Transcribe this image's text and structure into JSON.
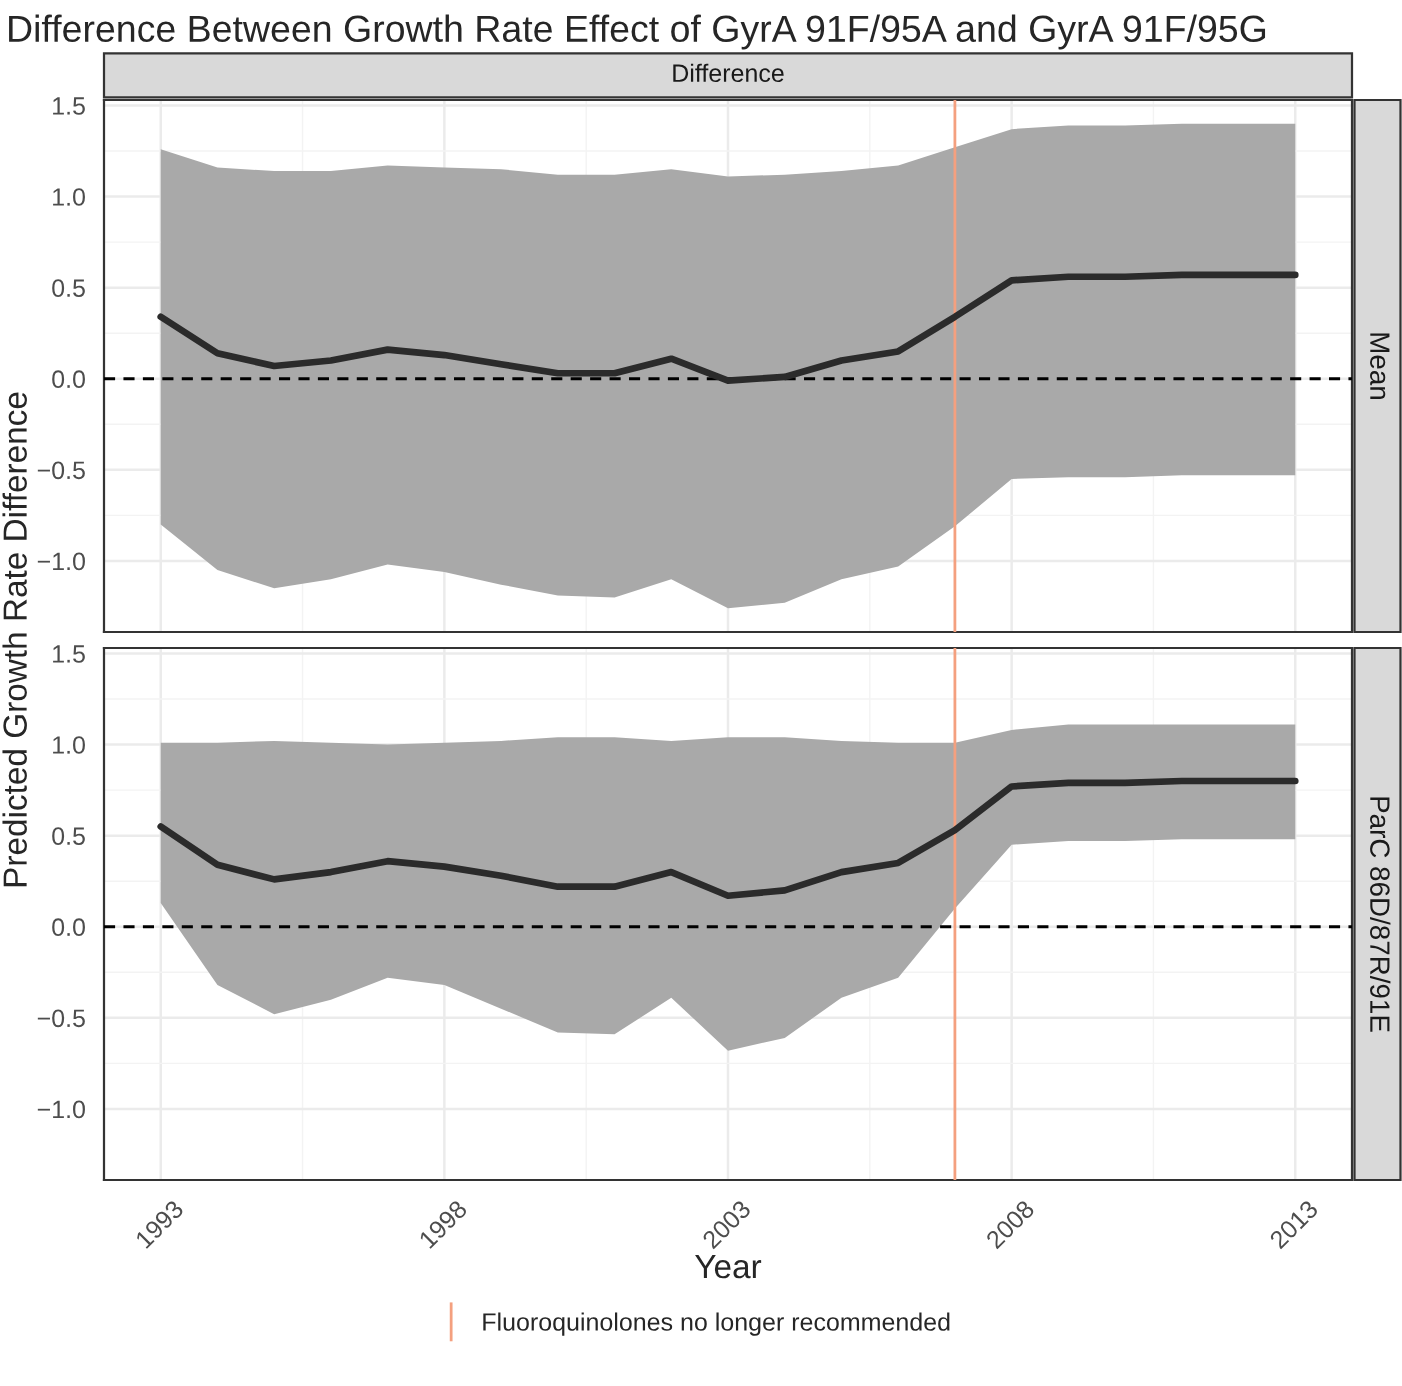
{
  "chart_data": [
    {
      "type": "line",
      "title": "Difference Between Growth Rate Effect of GyrA 91F/95A and GyrA 91F/95G",
      "subtitle": "Difference",
      "y2label": "Mean",
      "ylabel": "Predicted Growth Rate Difference",
      "x": [
        1993,
        1994,
        1995,
        1996,
        1997,
        1998,
        1999,
        2000,
        2001,
        2002,
        2003,
        2004,
        2005,
        2006,
        2007,
        2008,
        2009,
        2010,
        2011,
        2012,
        2013
      ],
      "series": [
        {
          "color": "#2b2b2b",
          "values": [
            0.34,
            0.14,
            0.07,
            0.1,
            0.16,
            0.13,
            0.08,
            0.03,
            0.03,
            0.11,
            -0.01,
            0.01,
            0.1,
            0.15,
            0.34,
            0.54,
            0.56,
            0.56,
            0.57,
            0.57,
            0.57
          ],
          "upper": [
            1.26,
            1.16,
            1.14,
            1.14,
            1.17,
            1.16,
            1.15,
            1.12,
            1.12,
            1.15,
            1.11,
            1.12,
            1.14,
            1.17,
            1.27,
            1.37,
            1.39,
            1.39,
            1.4,
            1.4,
            1.4
          ],
          "lower": [
            -0.8,
            -1.05,
            -1.15,
            -1.1,
            -1.02,
            -1.06,
            -1.13,
            -1.19,
            -1.2,
            -1.1,
            -1.26,
            -1.23,
            -1.1,
            -1.03,
            -0.81,
            -0.55,
            -0.54,
            -0.54,
            -0.53,
            -0.53,
            -0.53
          ]
        }
      ],
      "xlim": [
        1992.0,
        2014.0
      ],
      "ylim": [
        -1.39,
        1.53
      ],
      "xticks": [
        1993,
        1998,
        2003,
        2008,
        2013
      ],
      "yticks": [
        {
          "value": -1.0,
          "label": "−1.0"
        },
        {
          "value": -0.5,
          "label": "−0.5"
        },
        {
          "value": 0,
          "label": "0.0"
        },
        {
          "value": 0.5,
          "label": "0.5"
        },
        {
          "value": 1,
          "label": "1.0"
        },
        {
          "value": 1.5,
          "label": "1.5"
        }
      ],
      "tick_labels": "y",
      "grid": true,
      "line_style": "solid",
      "ref_lines": [
        {
          "axis": "y",
          "value": 0,
          "color": "#000000",
          "line_style": "dashed"
        },
        {
          "axis": "x",
          "value": 2007,
          "label": "Fluoroquinolones no longer recommended",
          "color": "#f4a07f",
          "line_style": "solid"
        }
      ],
      "legend": "bottom"
    },
    {
      "type": "line",
      "y2label": "ParC 86D/87R/91E",
      "xlabel": "Year",
      "x": [
        1993,
        1994,
        1995,
        1996,
        1997,
        1998,
        1999,
        2000,
        2001,
        2002,
        2003,
        2004,
        2005,
        2006,
        2007,
        2008,
        2009,
        2010,
        2011,
        2012,
        2013
      ],
      "series": [
        {
          "color": "#2b2b2b",
          "values": [
            0.55,
            0.34,
            0.26,
            0.3,
            0.36,
            0.33,
            0.28,
            0.22,
            0.22,
            0.3,
            0.17,
            0.2,
            0.3,
            0.35,
            0.53,
            0.77,
            0.79,
            0.79,
            0.8,
            0.8,
            0.8
          ],
          "upper": [
            1.01,
            1.01,
            1.02,
            1.01,
            1.0,
            1.01,
            1.02,
            1.04,
            1.04,
            1.02,
            1.04,
            1.04,
            1.02,
            1.01,
            1.01,
            1.08,
            1.11,
            1.11,
            1.11,
            1.11,
            1.11
          ],
          "lower": [
            0.13,
            -0.32,
            -0.48,
            -0.4,
            -0.28,
            -0.32,
            -0.45,
            -0.58,
            -0.59,
            -0.39,
            -0.68,
            -0.61,
            -0.39,
            -0.28,
            0.1,
            0.45,
            0.47,
            0.47,
            0.48,
            0.48,
            0.48
          ]
        }
      ],
      "xlim": [
        1992.0,
        2014.0
      ],
      "ylim": [
        -1.39,
        1.53
      ],
      "xticks": [
        1993,
        1998,
        2003,
        2008,
        2013
      ],
      "yticks": [
        {
          "value": -1.0,
          "label": "−1.0"
        },
        {
          "value": -0.5,
          "label": "−0.5"
        },
        {
          "value": 0,
          "label": "0.0"
        },
        {
          "value": 0.5,
          "label": "0.5"
        },
        {
          "value": 1,
          "label": "1.0"
        },
        {
          "value": 1.5,
          "label": "1.5"
        }
      ],
      "grid": true,
      "line_style": "solid",
      "ref_lines": [
        {
          "axis": "y",
          "value": 0,
          "color": "#000000",
          "line_style": "dashed"
        },
        {
          "axis": "x",
          "value": 2007,
          "color": "#f4a07f",
          "line_style": "solid"
        }
      ]
    }
  ]
}
